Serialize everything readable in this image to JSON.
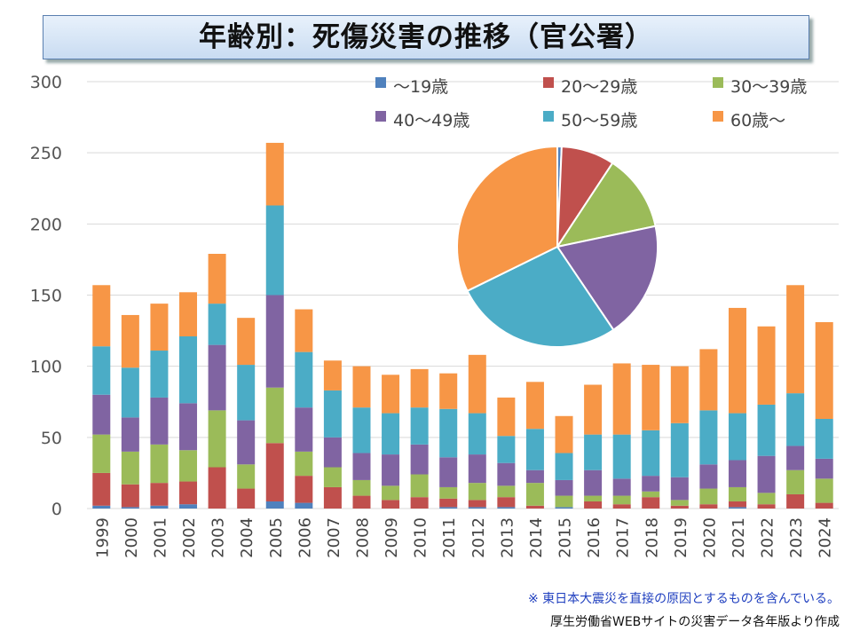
{
  "chart_data": {
    "type": "bar",
    "stacked": true,
    "title": "年齢別：死傷災害の推移（官公署）",
    "categories": [
      "1999",
      "2000",
      "2001",
      "2002",
      "2003",
      "2004",
      "2005",
      "2006",
      "2007",
      "2008",
      "2009",
      "2010",
      "2011",
      "2012",
      "2013",
      "2014",
      "2015",
      "2016",
      "2017",
      "2018",
      "2019",
      "2020",
      "2021",
      "2022",
      "2023",
      "2024"
    ],
    "ylim": [
      0,
      300
    ],
    "yticks": [
      "0",
      "50",
      "100",
      "150",
      "200",
      "250",
      "300"
    ],
    "grid": true,
    "legend": "top-right",
    "series": [
      {
        "name": "～19歳",
        "color": "#4f81bd",
        "values": [
          2,
          1,
          2,
          3,
          0,
          0,
          5,
          4,
          0,
          0,
          0,
          0,
          1,
          1,
          1,
          0,
          1,
          0,
          0,
          0,
          0,
          0,
          1,
          0,
          0,
          0
        ]
      },
      {
        "name": "20～29歳",
        "color": "#c0504d",
        "values": [
          23,
          16,
          16,
          16,
          29,
          14,
          41,
          19,
          15,
          9,
          6,
          8,
          6,
          5,
          7,
          2,
          0,
          5,
          3,
          8,
          2,
          3,
          4,
          3,
          10,
          4
        ]
      },
      {
        "name": "30～39歳",
        "color": "#9bbb59",
        "values": [
          27,
          23,
          27,
          22,
          40,
          17,
          39,
          17,
          14,
          11,
          10,
          16,
          8,
          12,
          8,
          16,
          8,
          4,
          6,
          4,
          4,
          11,
          10,
          8,
          17,
          17
        ]
      },
      {
        "name": "40～49歳",
        "color": "#8064a2",
        "values": [
          28,
          24,
          33,
          33,
          46,
          31,
          65,
          31,
          21,
          19,
          22,
          21,
          21,
          20,
          16,
          9,
          11,
          18,
          12,
          11,
          16,
          17,
          19,
          26,
          17,
          14
        ]
      },
      {
        "name": "50～59歳",
        "color": "#4bacc6",
        "values": [
          34,
          35,
          33,
          47,
          29,
          39,
          63,
          39,
          33,
          32,
          29,
          26,
          34,
          29,
          19,
          29,
          19,
          25,
          31,
          32,
          38,
          38,
          33,
          36,
          37,
          28
        ]
      },
      {
        "name": "60歳～",
        "color": "#f79646",
        "values": [
          43,
          37,
          33,
          31,
          35,
          33,
          44,
          30,
          21,
          29,
          27,
          27,
          25,
          41,
          27,
          33,
          26,
          35,
          50,
          46,
          40,
          43,
          74,
          55,
          76,
          68
        ]
      }
    ],
    "inset_pie": {
      "type": "pie",
      "description_of": "total by age group, same series as bars"
    }
  },
  "notes": {
    "note1": "※ 東日本大震災を直接の原因とするものを含んでいる。",
    "note2": "厚生労働省WEBサイトの災害データ各年版より作成"
  }
}
